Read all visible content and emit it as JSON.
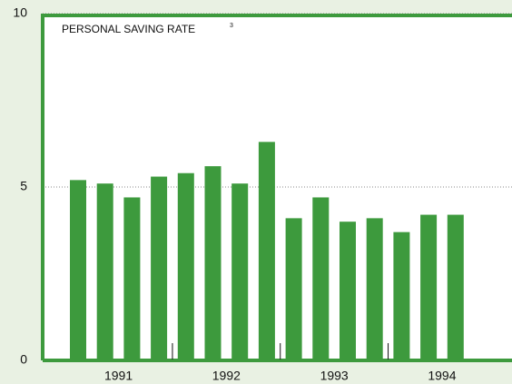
{
  "chart_data": {
    "type": "bar",
    "title": "PERSONAL SAVING RATE",
    "title_note": "3",
    "categories": [
      null,
      null,
      null,
      null,
      null,
      null,
      null,
      null,
      null,
      null,
      null,
      null,
      null,
      null,
      null
    ],
    "groups": [
      "1991",
      "1992",
      "1993",
      "1994"
    ],
    "values": [
      5.2,
      5.1,
      4.7,
      5.3,
      5.4,
      5.6,
      5.1,
      6.3,
      4.1,
      4.7,
      4.0,
      4.1,
      3.7,
      4.2,
      4.2
    ],
    "color": "#3d9a3d",
    "ylim": [
      0,
      10
    ],
    "yticks": [
      0,
      5,
      10
    ],
    "grid": true
  }
}
